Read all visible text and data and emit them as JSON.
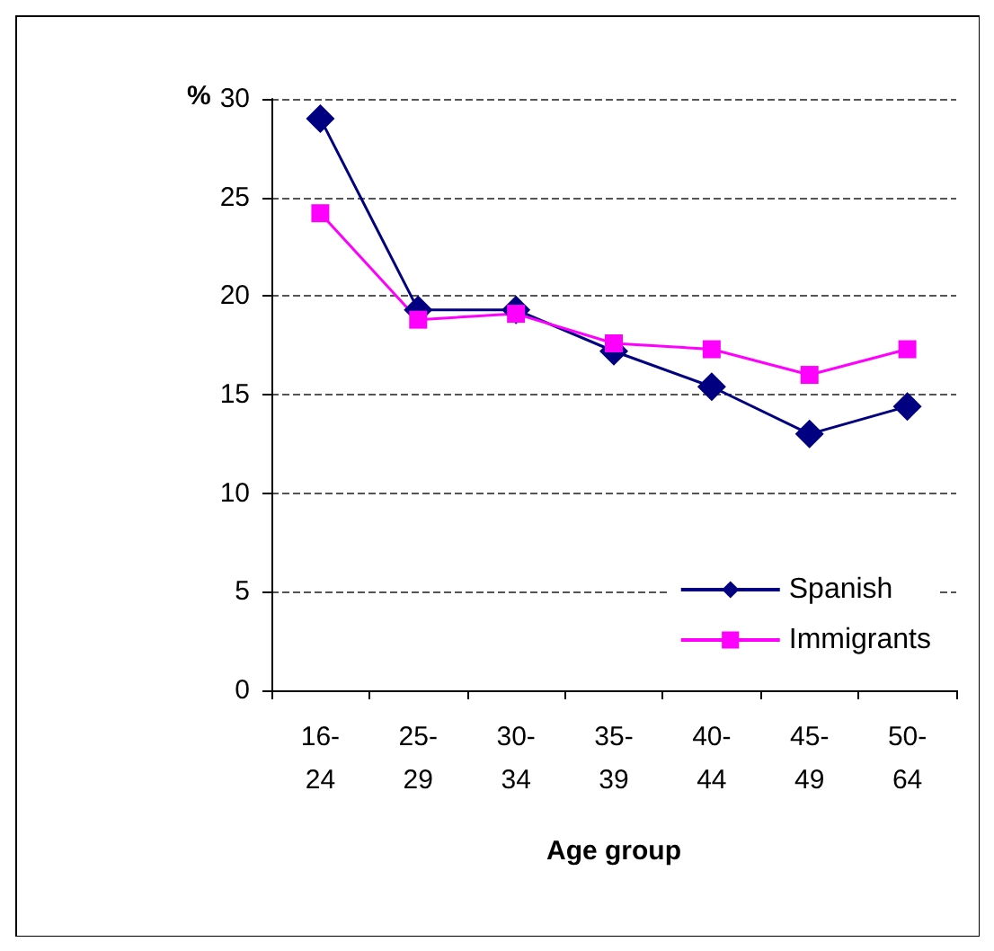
{
  "chart_data": {
    "type": "line",
    "ylabel": "%",
    "xlabel": "Age group",
    "categories": [
      "16-\n24",
      "25-\n29",
      "30-\n34",
      "35-\n39",
      "40-\n44",
      "45-\n49",
      "50-\n64"
    ],
    "series": [
      {
        "name": "Spanish",
        "color": "#000080",
        "marker": "diamond",
        "values": [
          29.0,
          19.3,
          19.3,
          17.2,
          15.4,
          13.0,
          14.4
        ]
      },
      {
        "name": "Immigrants",
        "color": "#ff00ff",
        "marker": "square",
        "values": [
          24.2,
          18.8,
          19.1,
          17.6,
          17.3,
          16.0,
          17.3
        ]
      }
    ],
    "ylim": [
      0,
      30
    ],
    "yticks": [
      0,
      5,
      10,
      15,
      20,
      25,
      30
    ],
    "grid": "y",
    "line_style": "solid",
    "legend": "bottom right"
  }
}
